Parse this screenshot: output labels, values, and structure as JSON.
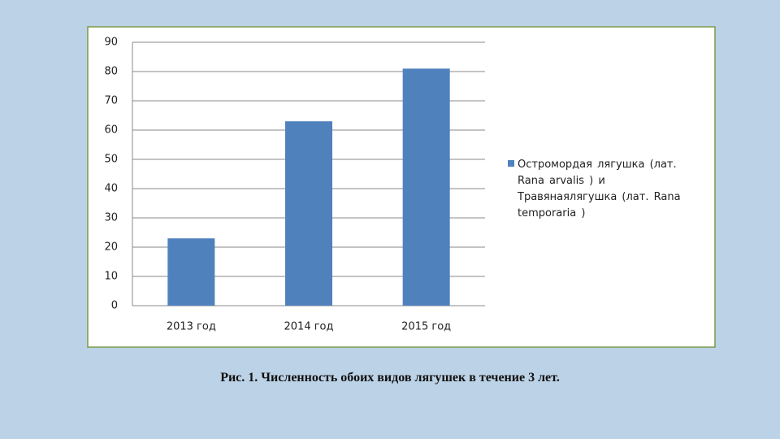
{
  "chart_data": {
    "type": "bar",
    "title": "Рис. 1. Численность обоих видов лягушек в течение 3 лет.",
    "categories": [
      "2013 год",
      "2014 год",
      "2015 год"
    ],
    "series": [
      {
        "name": "Остромордая лягушка   (лат. Rana arvalis ) и Травянаялягушка  (лат.  Rana temporaria )",
        "color": "#4f81bd",
        "values": [
          23,
          63,
          81
        ]
      }
    ],
    "ylim": [
      0,
      90
    ],
    "yticks": [
      0,
      10,
      20,
      30,
      40,
      50,
      60,
      70,
      80,
      90
    ],
    "grid": true,
    "legend": "right"
  }
}
